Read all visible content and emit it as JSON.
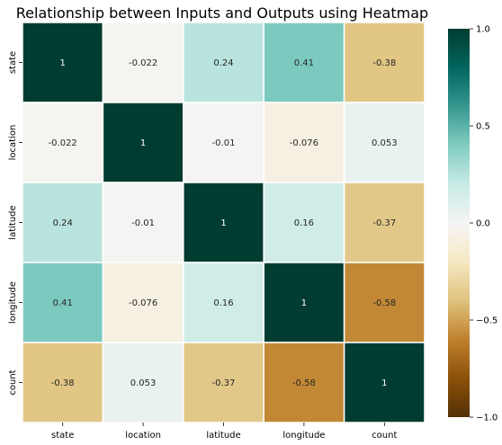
{
  "chart_data": {
    "type": "heatmap",
    "title": "Relationship between Inputs and Outputs using Heatmap",
    "x_labels": [
      "state",
      "location",
      "latitude",
      "longitude",
      "count"
    ],
    "y_labels": [
      "state",
      "location",
      "latitude",
      "longitude",
      "count"
    ],
    "values": [
      [
        1,
        -0.022,
        0.24,
        0.41,
        -0.38
      ],
      [
        -0.022,
        1,
        -0.01,
        -0.076,
        0.053
      ],
      [
        0.24,
        -0.01,
        1,
        0.16,
        -0.37
      ],
      [
        0.41,
        -0.076,
        0.16,
        1,
        -0.58
      ],
      [
        -0.38,
        0.053,
        -0.37,
        -0.58,
        1
      ]
    ],
    "value_labels": [
      [
        "1",
        "-0.022",
        "0.24",
        "0.41",
        "-0.38"
      ],
      [
        "-0.022",
        "1",
        "-0.01",
        "-0.076",
        "0.053"
      ],
      [
        "0.24",
        "-0.01",
        "1",
        "0.16",
        "-0.37"
      ],
      [
        "0.41",
        "-0.076",
        "0.16",
        "1",
        "-0.58"
      ],
      [
        "-0.38",
        "0.053",
        "-0.37",
        "-0.58",
        "1"
      ]
    ],
    "colormap": "BrBG",
    "vmin": -1,
    "vmax": 1,
    "colorbar_ticks": [
      -1.0,
      -0.5,
      0.0,
      0.5,
      1.0
    ],
    "colorbar_tick_labels": [
      "−1.0",
      "−0.5",
      "0.0",
      "0.5",
      "1.0"
    ],
    "cell_border_color": "#ffffff",
    "annotated": true
  }
}
